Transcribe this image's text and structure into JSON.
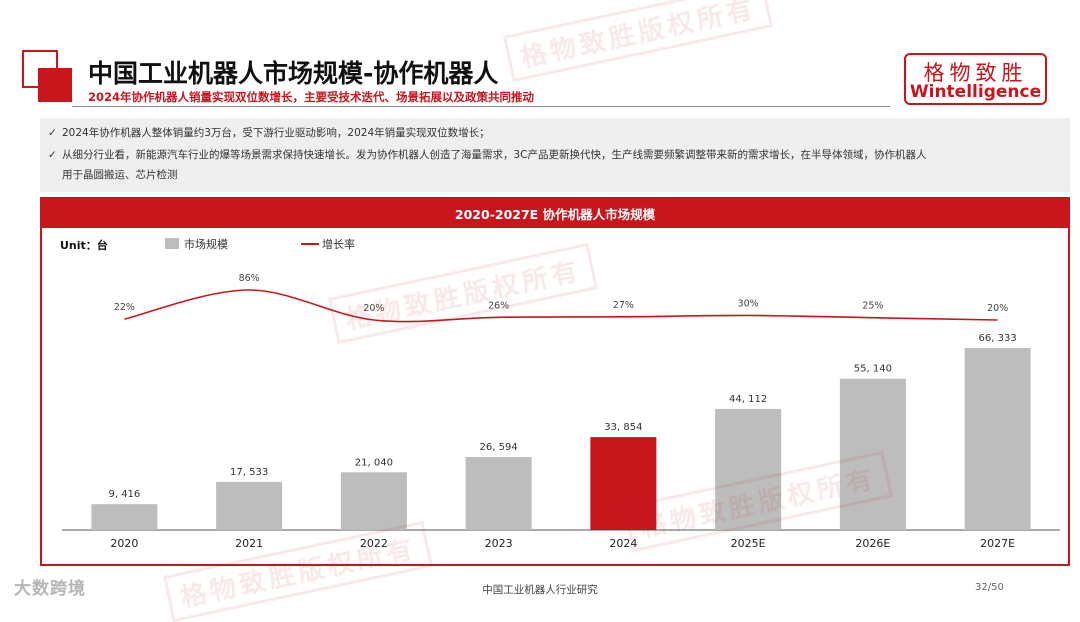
{
  "header": {
    "title": "中国工业机器人市场规模-协作机器人",
    "subtitle": "2024年协作机器人销量实现双位数增长，主要受技术迭代、场景拓展以及政策共同推动"
  },
  "logo": {
    "cn": "格物致胜",
    "en": "Wintelligence"
  },
  "bullets": [
    {
      "mark": "✓",
      "text": "2024年协作机器人整体销量约3万台，受下游行业驱动影响，2024年销量实现双位数增长；"
    },
    {
      "mark": "✓",
      "text": "从细分行业看，新能源汽车行业的爆等场景需求保持快速增长。发为协作机器人创造了海量需求，3C产品更新换代快，生产线需要频繁调整带来新的需求增长，在半导体领域，协作机器人"
    },
    {
      "mark": "",
      "text": "用于晶圆搬运、芯片检测"
    }
  ],
  "chart_title": "2020-2027E 协作机器人市场规模",
  "unit_label": "Unit：台",
  "chart_data": {
    "type": "bar",
    "title": "2020-2027E 协作机器人市场规模",
    "categories": [
      "2020",
      "2021",
      "2022",
      "2023",
      "2024",
      "2025E",
      "2026E",
      "2027E"
    ],
    "series": [
      {
        "name": "市场规模",
        "type": "bar",
        "values": [
          9416,
          17533,
          21040,
          26594,
          33854,
          44112,
          55140,
          66333
        ],
        "labels": [
          "9, 416",
          "17, 533",
          "21, 040",
          "26, 594",
          "33, 854",
          "44, 112",
          "55, 140",
          "66, 333"
        ],
        "color": "#bdbdbd",
        "highlight_index": 4,
        "highlight_color": "#c8161d"
      },
      {
        "name": "增长率",
        "type": "line",
        "values": [
          22,
          86,
          20,
          26,
          27,
          30,
          25,
          20
        ],
        "labels": [
          "22%",
          "86%",
          "20%",
          "26%",
          "27%",
          "30%",
          "25%",
          "20%"
        ],
        "color": "#c8161d"
      }
    ],
    "ylim": [
      0,
      66333
    ],
    "grid": false,
    "legend": "top-left"
  },
  "watermark": "格物致胜版权所有",
  "footer": {
    "center": "中国工业机器人行业研究",
    "page": "32/50",
    "source_logo": "大数跨境"
  }
}
